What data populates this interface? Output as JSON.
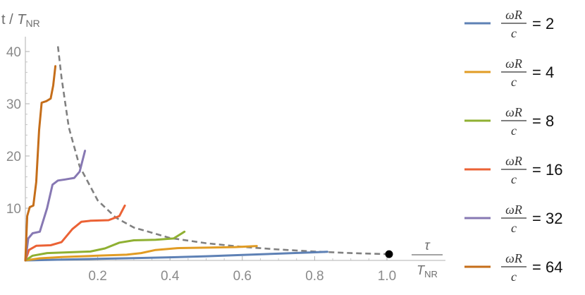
{
  "chart_data": {
    "type": "line",
    "ylabel": {
      "prefix": "t / ",
      "var": "T",
      "sub": "NR"
    },
    "xlabel": {
      "num": "τ",
      "den_var": "T",
      "den_sub": "NR"
    },
    "xlim": [
      0,
      1.05
    ],
    "ylim": [
      0,
      42
    ],
    "xticks": [
      "0.2",
      "0.4",
      "0.6",
      "0.8",
      "1.0"
    ],
    "yticks": [
      "10",
      "20",
      "30",
      "40"
    ],
    "xtick_values": [
      0.2,
      0.4,
      0.6,
      0.8,
      1.0
    ],
    "ytick_values": [
      10,
      20,
      30,
      40
    ],
    "legend_position": "right",
    "legend_frac": {
      "num": "ωR",
      "den": "c"
    },
    "series": [
      {
        "name": "2",
        "color": "#5E81B5",
        "x": [
          0,
          0.1,
          0.2,
          0.3,
          0.4,
          0.5,
          0.6,
          0.7,
          0.8,
          0.835
        ],
        "y": [
          0,
          0.15,
          0.3,
          0.45,
          0.6,
          0.8,
          1.05,
          1.3,
          1.55,
          1.65
        ]
      },
      {
        "name": "4",
        "color": "#E19C24",
        "x": [
          0,
          0.04,
          0.1,
          0.2,
          0.28,
          0.32,
          0.36,
          0.42,
          0.5,
          0.58,
          0.64
        ],
        "y": [
          0,
          0.4,
          0.65,
          0.9,
          1.1,
          1.4,
          2.0,
          2.35,
          2.45,
          2.55,
          2.75
        ]
      },
      {
        "name": "8",
        "color": "#8FB032",
        "x": [
          0,
          0.02,
          0.06,
          0.12,
          0.18,
          0.22,
          0.26,
          0.3,
          0.36,
          0.41,
          0.44
        ],
        "y": [
          0,
          0.9,
          1.4,
          1.55,
          1.7,
          2.3,
          3.4,
          3.85,
          3.95,
          4.2,
          5.5
        ]
      },
      {
        "name": "16",
        "color": "#EB6235",
        "x": [
          0,
          0.01,
          0.03,
          0.07,
          0.1,
          0.13,
          0.155,
          0.18,
          0.23,
          0.26,
          0.275
        ],
        "y": [
          0,
          2.0,
          2.8,
          2.9,
          3.5,
          6.0,
          7.4,
          7.6,
          7.7,
          8.5,
          10.5
        ]
      },
      {
        "name": "32",
        "color": "#8778B3",
        "x": [
          0,
          0.008,
          0.02,
          0.04,
          0.06,
          0.075,
          0.09,
          0.11,
          0.135,
          0.15,
          0.165
        ],
        "y": [
          0,
          4.2,
          5.2,
          5.5,
          10.0,
          14.5,
          15.3,
          15.5,
          15.8,
          17.0,
          21.0
        ]
      },
      {
        "name": "64",
        "color": "#C56E1A",
        "x": [
          0,
          0.005,
          0.012,
          0.022,
          0.03,
          0.038,
          0.045,
          0.058,
          0.07,
          0.077,
          0.083
        ],
        "y": [
          0,
          8.5,
          10.2,
          10.5,
          15.0,
          25.0,
          30.2,
          30.5,
          31.0,
          33.5,
          37.2
        ]
      }
    ],
    "envelope": {
      "style": "dashed",
      "color": "#808080",
      "x": [
        0.09,
        0.1,
        0.12,
        0.15,
        0.2,
        0.25,
        0.3,
        0.4,
        0.5,
        0.6,
        0.7,
        0.8,
        0.9,
        1.0
      ],
      "y": [
        41.0,
        35.0,
        25.5,
        18.0,
        11.5,
        8.2,
        6.3,
        4.3,
        3.3,
        2.6,
        2.1,
        1.7,
        1.4,
        1.2
      ]
    },
    "endpoint": {
      "x": 1.0,
      "y": 1.2
    }
  }
}
